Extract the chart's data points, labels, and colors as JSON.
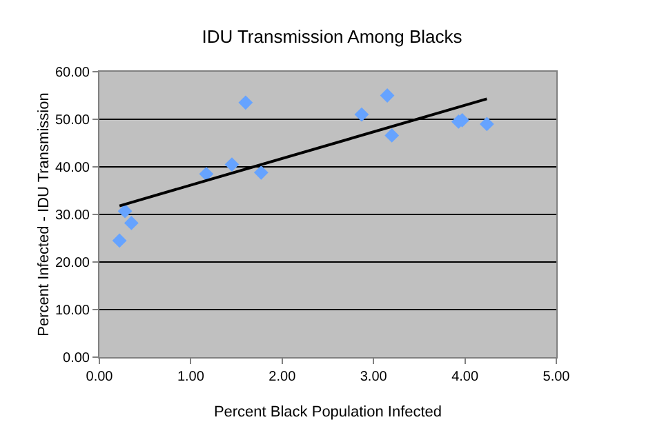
{
  "chart_data": {
    "type": "scatter",
    "title": "IDU Transmission Among Blacks",
    "xlabel": "Percent Black Population Infected",
    "ylabel": "Percent Infected - IDU Transmission",
    "xlim": [
      0,
      5
    ],
    "xticks": [
      {
        "value": 0,
        "label": "0.00"
      },
      {
        "value": 1,
        "label": "1.00"
      },
      {
        "value": 2,
        "label": "2.00"
      },
      {
        "value": 3,
        "label": "3.00"
      },
      {
        "value": 4,
        "label": "4.00"
      },
      {
        "value": 5,
        "label": "5.00"
      }
    ],
    "ylim": [
      0,
      60
    ],
    "yticks": [
      {
        "value": 0,
        "label": "0.00"
      },
      {
        "value": 10,
        "label": "10.00"
      },
      {
        "value": 20,
        "label": "20.00"
      },
      {
        "value": 30,
        "label": "30.00"
      },
      {
        "value": 40,
        "label": "40.00"
      },
      {
        "value": 50,
        "label": "50.00"
      },
      {
        "value": 60,
        "label": "60.00"
      }
    ],
    "grid": "y",
    "marker": "diamond",
    "series": [
      {
        "color": "#66a3ff",
        "x": [
          0.22,
          0.28,
          0.35,
          1.17,
          1.45,
          1.6,
          1.77,
          2.87,
          3.15,
          3.2,
          3.93,
          3.97,
          4.24
        ],
        "values": [
          24.5,
          30.7,
          28.2,
          38.5,
          40.5,
          53.5,
          38.8,
          51,
          55,
          46.6,
          49.5,
          49.8,
          49
        ]
      },
      {
        "type": "line",
        "color": "#000000",
        "line_style": "solid",
        "marker": "none",
        "x": [
          0.22,
          4.24
        ],
        "values": [
          31.8,
          54.3
        ]
      }
    ]
  }
}
